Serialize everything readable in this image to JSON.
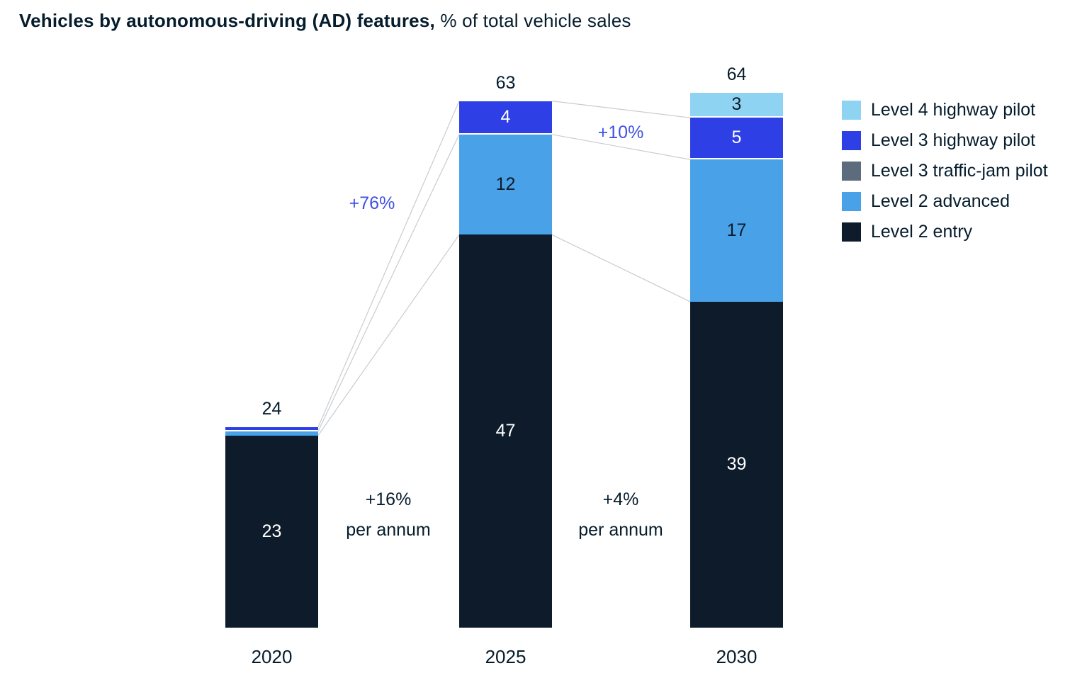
{
  "title": {
    "bold": "Vehicles by autonomous-driving (AD) features,",
    "regular": "% of total vehicle sales"
  },
  "colors": {
    "l4": "#8FD3F2",
    "l3_highway": "#2D3FE5",
    "l3_tj": "#5C6C7C",
    "l2_adv": "#49A2E8",
    "l2_entry": "#0E1B2B",
    "annotation_blue": "#3F51E3",
    "text_dark": "#051C2C",
    "connector": "#C8CCD0"
  },
  "legend": [
    {
      "label": "Level 4 highway pilot",
      "color_key": "l4"
    },
    {
      "label": "Level 3 highway pilot",
      "color_key": "l3_highway"
    },
    {
      "label": "Level 3 traffic-jam pilot",
      "color_key": "l3_tj"
    },
    {
      "label": "Level 2 advanced",
      "color_key": "l2_adv"
    },
    {
      "label": "Level 2 entry",
      "color_key": "l2_entry"
    }
  ],
  "chart_data": {
    "type": "bar",
    "stacked": true,
    "title": "Vehicles by autonomous-driving (AD) features",
    "subtitle": "% of total vehicle sales",
    "categories": [
      "2020",
      "2025",
      "2030"
    ],
    "series": [
      {
        "name": "Level 2 entry",
        "key": "l2_entry",
        "values": [
          23,
          47,
          39
        ]
      },
      {
        "name": "Level 2 advanced",
        "key": "l2_adv",
        "values": [
          0.5,
          12,
          17
        ]
      },
      {
        "name": "Level 3 traffic-jam pilot",
        "key": "l3_tj",
        "values": [
          0,
          0,
          0
        ]
      },
      {
        "name": "Level 3 highway pilot",
        "key": "l3_highway",
        "values": [
          0.5,
          4,
          5
        ]
      },
      {
        "name": "Level 4 highway pilot",
        "key": "l4",
        "values": [
          0,
          0,
          3
        ]
      }
    ],
    "totals": [
      24,
      63,
      64
    ],
    "ylim": [
      0,
      64
    ],
    "legend_position": "top-right",
    "grid": false,
    "annotations": {
      "growth_2020_2025": "+76%",
      "growth_2025_2030": "+10%",
      "cagr_2020_2025": [
        "+16%",
        "per annum"
      ],
      "cagr_2025_2030": [
        "+4%",
        "per annum"
      ]
    }
  }
}
